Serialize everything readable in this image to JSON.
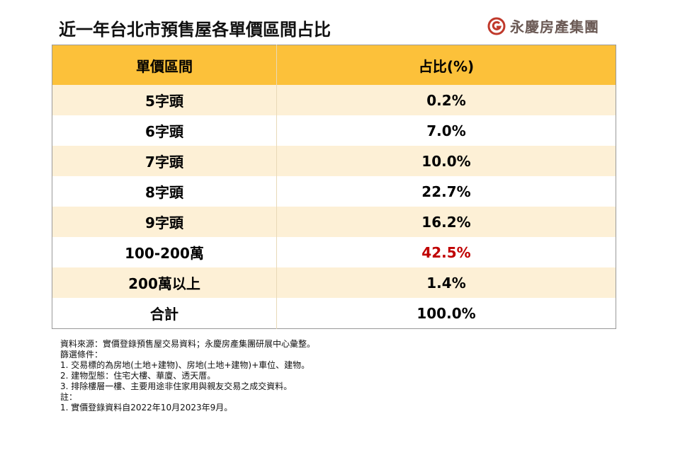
{
  "header": {
    "title": "近一年台北市預售屋各單價區間占比",
    "brand": "永慶房產集團"
  },
  "table": {
    "columns": [
      "單價區間",
      "占比(%)"
    ],
    "rows": [
      {
        "label": "5字頭",
        "share": "0.2%",
        "color": "#000000"
      },
      {
        "label": "6字頭",
        "share": "7.0%",
        "color": "#000000"
      },
      {
        "label": "7字頭",
        "share": "10.0%",
        "color": "#000000"
      },
      {
        "label": "8字頭",
        "share": "22.7%",
        "color": "#000000"
      },
      {
        "label": "9字頭",
        "share": "16.2%",
        "color": "#000000"
      },
      {
        "label": "100-200萬",
        "share": "42.5%",
        "color": "#c00000"
      },
      {
        "label": "200萬以上",
        "share": "1.4%",
        "color": "#000000"
      },
      {
        "label": "合計",
        "share": "100.0%",
        "color": "#000000"
      }
    ]
  },
  "notes": [
    "資料來源：實價登錄預售屋交易資料；永慶房產集團研展中心彙整。",
    "篩選條件：",
    "1. 交易標的為房地(土地+建物)、房地(土地+建物)+車位、建物。",
    "2. 建物型態：住宅大樓、華廈、透天厝。",
    "3. 排除樓層一樓、主要用途非住家用與親友交易之成交資料。",
    "註：",
    "1. 實價登錄資料自2022年10月2023年9月。"
  ]
}
